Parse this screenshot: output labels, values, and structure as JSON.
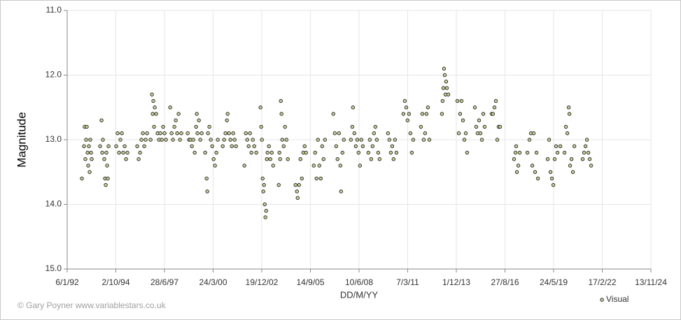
{
  "chart_data": {
    "type": "scatter",
    "xlabel": "DD/M/YY",
    "ylabel": "Magnitude",
    "credit": "© Gary Poyner www.variablestars.co.uk",
    "xlim": [
      33609,
      45609
    ],
    "xticks": [
      {
        "value": 33609,
        "label": "6/1/92"
      },
      {
        "value": 34609,
        "label": "2/10/94"
      },
      {
        "value": 35609,
        "label": "28/6/97"
      },
      {
        "value": 36609,
        "label": "24/3/00"
      },
      {
        "value": 37609,
        "label": "19/12/02"
      },
      {
        "value": 38609,
        "label": "14/9/05"
      },
      {
        "value": 39609,
        "label": "10/6/08"
      },
      {
        "value": 40609,
        "label": "7/3/11"
      },
      {
        "value": 41609,
        "label": "1/12/13"
      },
      {
        "value": 42609,
        "label": "27/8/16"
      },
      {
        "value": 43609,
        "label": "24/5/19"
      },
      {
        "value": 44609,
        "label": "17/2/22"
      },
      {
        "value": 45609,
        "label": "13/11/24"
      }
    ],
    "ylim": [
      11,
      15
    ],
    "y_inverted": true,
    "yticks": [
      {
        "value": 11,
        "label": "11.0"
      },
      {
        "value": 12,
        "label": "12.0"
      },
      {
        "value": 13,
        "label": "13.0"
      },
      {
        "value": 14,
        "label": "14.0"
      },
      {
        "value": 15,
        "label": "15.0"
      }
    ],
    "grid": true,
    "legend": "bottom-right",
    "x": [
      33911,
      33955,
      33969,
      33983,
      33998,
      34012,
      34027,
      34041,
      34055,
      34070,
      34084,
      34099,
      34113,
      34286,
      34315,
      34329,
      34343,
      34372,
      34387,
      34401,
      34415,
      34430,
      34444,
      34459,
      34617,
      34646,
      34675,
      34703,
      34732,
      34761,
      34790,
      34819,
      34847,
      35049,
      35078,
      35107,
      35135,
      35164,
      35193,
      35222,
      35251,
      35323,
      35351,
      35366,
      35380,
      35395,
      35409,
      35438,
      35467,
      35495,
      35524,
      35553,
      35582,
      35611,
      35639,
      35726,
      35755,
      35783,
      35812,
      35841,
      35870,
      35899,
      35927,
      35956,
      36086,
      36115,
      36143,
      36172,
      36201,
      36230,
      36259,
      36273,
      36287,
      36316,
      36345,
      36374,
      36446,
      36475,
      36489,
      36503,
      36532,
      36561,
      36590,
      36619,
      36647,
      36676,
      36705,
      36806,
      36835,
      36863,
      36892,
      36907,
      36935,
      36964,
      36993,
      37022,
      37051,
      37079,
      37252,
      37281,
      37310,
      37339,
      37367,
      37396,
      37425,
      37454,
      37497,
      37583,
      37598,
      37612,
      37627,
      37641,
      37655,
      37670,
      37684,
      37699,
      37713,
      37727,
      37756,
      37785,
      37814,
      37843,
      37958,
      37972,
      37987,
      38001,
      38015,
      38030,
      38059,
      38087,
      38116,
      38145,
      38303,
      38332,
      38347,
      38375,
      38404,
      38433,
      38462,
      38491,
      38519,
      38678,
      38707,
      38735,
      38764,
      38793,
      38822,
      38851,
      38879,
      38908,
      39081,
      39110,
      39139,
      39167,
      39196,
      39225,
      39239,
      39268,
      39297,
      39441,
      39470,
      39484,
      39513,
      39542,
      39571,
      39599,
      39628,
      39657,
      39686,
      39801,
      39830,
      39859,
      39887,
      39916,
      39945,
      39974,
      40003,
      40031,
      40204,
      40233,
      40262,
      40291,
      40319,
      40348,
      40377,
      40521,
      40550,
      40579,
      40607,
      40636,
      40665,
      40694,
      40723,
      40881,
      40910,
      40939,
      40967,
      40996,
      41025,
      41054,
      41313,
      41327,
      41342,
      41356,
      41371,
      41385,
      41399,
      41414,
      41443,
      41630,
      41659,
      41687,
      41716,
      41745,
      41774,
      41803,
      41831,
      41990,
      42019,
      42047,
      42076,
      42105,
      42134,
      42163,
      42191,
      42335,
      42364,
      42393,
      42422,
      42451,
      42479,
      42508,
      42796,
      42825,
      42839,
      42854,
      42883,
      42911,
      43070,
      43113,
      43142,
      43171,
      43199,
      43228,
      43257,
      43286,
      43487,
      43516,
      43545,
      43574,
      43603,
      43631,
      43660,
      43689,
      43747,
      43833,
      43862,
      43891,
      43919,
      43934,
      43948,
      43977,
      44006,
      44035,
      44207,
      44236,
      44265,
      44294,
      44323,
      44351,
      44380
    ],
    "series": [
      {
        "name": "Visual",
        "color": "#c9cc98",
        "values": [
          13.6,
          13.1,
          12.8,
          13.3,
          13.0,
          12.8,
          13.2,
          13.4,
          13.1,
          13.5,
          13.0,
          13.2,
          13.3,
          13.1,
          12.7,
          13.2,
          13.0,
          13.3,
          13.6,
          13.7,
          13.2,
          13.4,
          13.6,
          13.1,
          13.1,
          12.9,
          13.2,
          13.0,
          12.9,
          13.2,
          13.1,
          13.3,
          13.2,
          13.1,
          13.3,
          13.2,
          13.0,
          12.9,
          13.1,
          13.0,
          12.9,
          13.0,
          12.3,
          12.6,
          12.4,
          12.8,
          12.5,
          12.6,
          12.9,
          13.0,
          12.9,
          13.0,
          12.8,
          12.9,
          13.0,
          12.5,
          12.9,
          13.0,
          12.8,
          12.7,
          12.9,
          12.6,
          13.0,
          12.9,
          12.9,
          13.0,
          13.0,
          13.1,
          13.0,
          13.2,
          12.8,
          12.6,
          12.9,
          12.7,
          13.0,
          12.9,
          13.2,
          13.6,
          13.8,
          12.9,
          12.8,
          13.0,
          13.1,
          13.3,
          13.4,
          13.2,
          13.0,
          13.1,
          13.0,
          12.9,
          12.7,
          12.6,
          12.9,
          13.0,
          13.1,
          12.9,
          13.0,
          13.1,
          13.4,
          12.9,
          13.0,
          13.1,
          12.9,
          13.2,
          13.0,
          13.1,
          13.2,
          12.5,
          12.8,
          13.0,
          13.6,
          13.8,
          13.7,
          14.0,
          14.2,
          14.1,
          13.3,
          13.2,
          13.1,
          13.3,
          13.2,
          13.4,
          13.7,
          13.2,
          13.3,
          12.4,
          12.6,
          13.0,
          13.1,
          12.8,
          13.0,
          13.3,
          13.7,
          13.8,
          13.9,
          13.7,
          13.3,
          13.6,
          13.2,
          13.1,
          13.2,
          13.4,
          13.2,
          13.6,
          13.0,
          13.4,
          13.6,
          13.1,
          13.3,
          13.0,
          12.6,
          12.9,
          13.1,
          13.3,
          12.9,
          13.4,
          13.8,
          13.2,
          13.0,
          13.0,
          12.8,
          12.5,
          12.9,
          13.1,
          13.0,
          13.2,
          13.4,
          13.0,
          13.1,
          13.2,
          13.0,
          13.3,
          13.1,
          12.9,
          12.8,
          13.0,
          13.2,
          13.3,
          12.9,
          13.0,
          13.2,
          13.1,
          13.3,
          13.0,
          13.2,
          12.6,
          12.4,
          12.5,
          12.7,
          12.6,
          12.9,
          13.2,
          13.0,
          12.8,
          12.6,
          13.0,
          12.9,
          12.6,
          12.5,
          13.0,
          12.6,
          12.4,
          12.2,
          11.9,
          12.0,
          12.3,
          12.1,
          12.2,
          12.3,
          12.4,
          12.9,
          12.6,
          12.4,
          12.7,
          13.0,
          12.9,
          13.2,
          12.5,
          12.8,
          12.9,
          12.7,
          12.9,
          13.0,
          12.6,
          12.8,
          12.6,
          12.6,
          12.5,
          12.4,
          13.0,
          12.8,
          12.8,
          13.3,
          13.2,
          13.1,
          13.5,
          13.4,
          13.2,
          13.2,
          13.0,
          12.9,
          13.4,
          12.9,
          13.5,
          13.2,
          13.6,
          13.3,
          13.0,
          13.5,
          13.6,
          13.7,
          13.3,
          13.1,
          13.2,
          13.1,
          13.2,
          12.8,
          12.9,
          12.5,
          12.6,
          13.4,
          13.3,
          13.5,
          13.1,
          13.3,
          13.2,
          13.1,
          13.0,
          13.2,
          13.3,
          13.4
        ]
      }
    ]
  }
}
